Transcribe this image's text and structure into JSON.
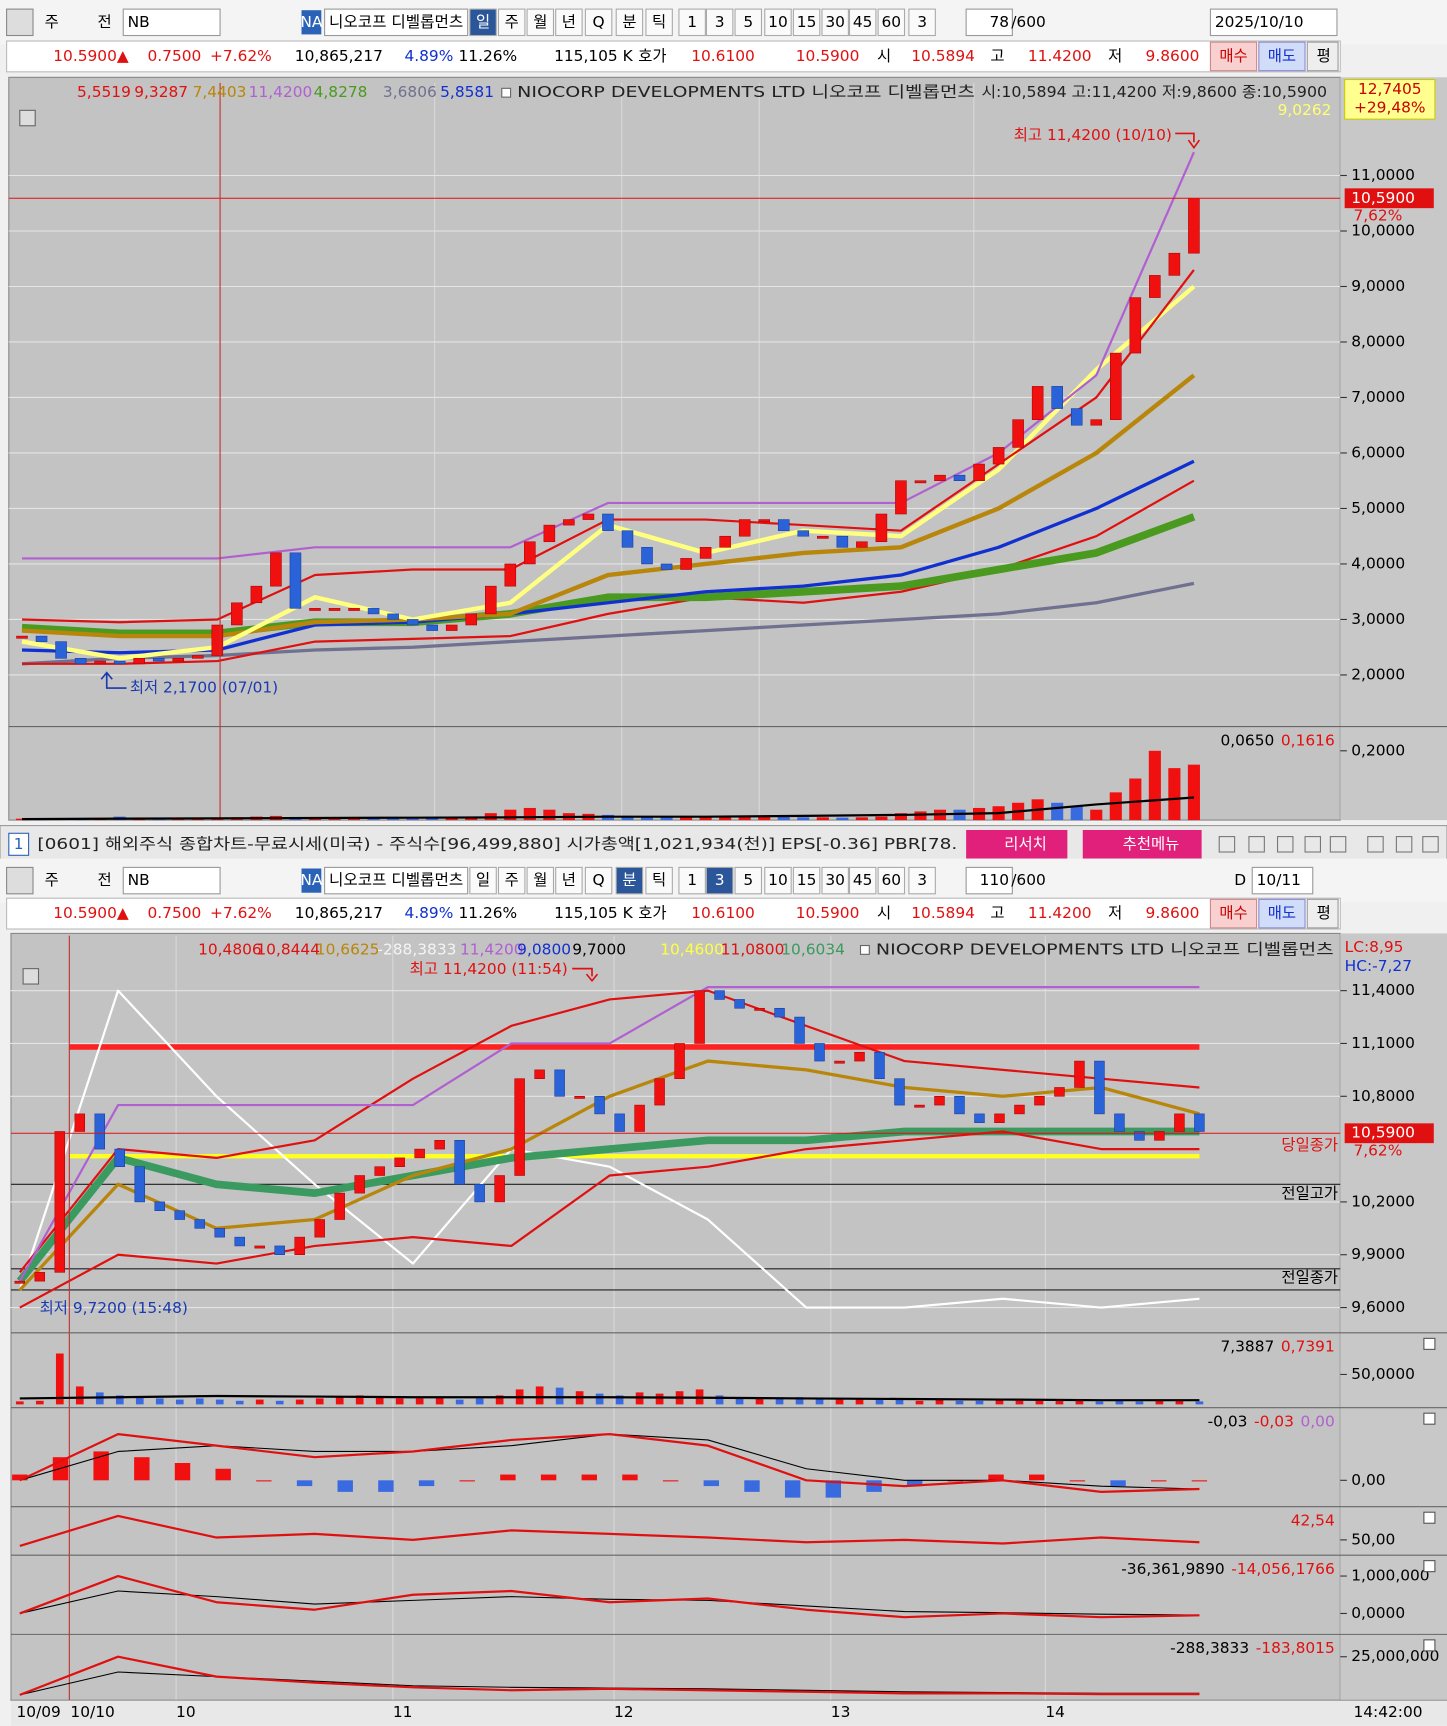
{
  "toolbar1": [
    "주",
    "전",
    "NB",
    "NA",
    "니오코프 디벨롭먼츠",
    "일",
    "주",
    "월",
    "년",
    "Q",
    "분",
    "틱",
    "1",
    "3",
    "5",
    "10",
    "15",
    "30",
    "45",
    "60",
    "3",
    "78",
    "/600",
    "2025/10/10"
  ],
  "quote1": [
    "10.5900▲",
    "0.7500",
    "+7.62%",
    "10,865,217",
    "4.89%",
    "11.26%",
    "115,105 K",
    "호가",
    "10.6100",
    "10.5900",
    "시",
    "10.5894",
    "고",
    "11.4200",
    "저",
    "9.8600",
    "매수",
    "매도",
    "평"
  ],
  "top_chart": {
    "legend": [
      {
        "text": "5,5519",
        "color": "#e01010"
      },
      {
        "text": "9,3287",
        "color": "#e01010"
      },
      {
        "text": "7,4403",
        "color": "#b8860b"
      },
      {
        "text": "11,4200",
        "color": "#b060d0"
      },
      {
        "text": "4,8278",
        "color": "#4a9a20"
      },
      {
        "text": "3,6806",
        "color": "#707090"
      },
      {
        "text": "5,8581",
        "color": "#1030d0"
      }
    ],
    "name": "NIOCORP DEVELOPMENTS LTD  니오코프 디벨롭먼츠",
    "ohlc": "시:10,5894 고:11,4200 저:9,8600 종:10,5900",
    "badge": [
      "12,7405",
      "+29,48%"
    ],
    "badge_sub": "9,0262",
    "high_note": "최고 11,4200 (10/10)",
    "low_note": "최저 2,1700 (07/01)",
    "price_label": "10,5900",
    "pct_label": "7,62%",
    "last_price": 10.59,
    "ylim": [
      1.07,
      12.67
    ],
    "yticks": [
      {
        "value": 2,
        "label": "2,0000"
      },
      {
        "value": 3,
        "label": "3,0000"
      },
      {
        "value": 4,
        "label": "4,0000"
      },
      {
        "value": 5,
        "label": "5,0000"
      },
      {
        "value": 6,
        "label": "6,0000"
      },
      {
        "value": 7,
        "label": "7,0000"
      },
      {
        "value": 8,
        "label": "8,0000"
      },
      {
        "value": 9,
        "label": "9,0000"
      },
      {
        "value": 10,
        "label": "10,0000"
      },
      {
        "value": 11,
        "label": "11,0000"
      }
    ],
    "close": [
      2.7,
      2.6,
      2.3,
      2.2,
      2.25,
      2.2,
      2.3,
      2.25,
      2.3,
      2.35,
      2.9,
      3.3,
      3.6,
      4.2,
      3.2,
      3.2,
      3.2,
      3.2,
      3.1,
      3.0,
      2.9,
      2.8,
      2.9,
      3.1,
      3.6,
      4.0,
      4.4,
      4.7,
      4.8,
      4.9,
      4.6,
      4.3,
      4.0,
      3.9,
      4.1,
      4.3,
      4.5,
      4.8,
      4.8,
      4.6,
      4.5,
      4.5,
      4.3,
      4.4,
      4.9,
      5.5,
      5.5,
      5.6,
      5.5,
      5.8,
      6.1,
      6.6,
      7.2,
      6.8,
      6.5,
      6.6,
      7.8,
      8.8,
      9.2,
      9.6,
      10.59
    ],
    "lines": [
      {
        "color": "#707090",
        "width": 3,
        "values": [
          2.2,
          2.3,
          2.35,
          2.45,
          2.5,
          2.6,
          2.7,
          2.8,
          2.9,
          3.0,
          3.1,
          3.3,
          3.65
        ]
      },
      {
        "color": "#e01010",
        "width": 2,
        "values": [
          2.2,
          2.2,
          2.25,
          2.6,
          2.65,
          2.7,
          3.1,
          3.4,
          3.3,
          3.5,
          3.9,
          4.5,
          5.5
        ]
      },
      {
        "color": "#4a9a20",
        "width": 7,
        "values": [
          2.85,
          2.75,
          2.75,
          2.95,
          2.95,
          3.1,
          3.4,
          3.4,
          3.5,
          3.6,
          3.9,
          4.2,
          4.85
        ]
      },
      {
        "color": "#1030d0",
        "width": 3,
        "values": [
          2.45,
          2.4,
          2.45,
          2.9,
          2.95,
          3.1,
          3.3,
          3.5,
          3.6,
          3.8,
          4.3,
          5.0,
          5.85
        ]
      },
      {
        "color": "#b8860b",
        "width": 4,
        "values": [
          2.8,
          2.7,
          2.7,
          2.95,
          3.0,
          3.1,
          3.8,
          4.0,
          4.2,
          4.3,
          5.0,
          6.0,
          7.4
        ]
      },
      {
        "color": "#ffff80",
        "width": 4,
        "values": [
          2.6,
          2.3,
          2.5,
          3.4,
          3.0,
          3.3,
          4.7,
          4.2,
          4.6,
          4.5,
          5.7,
          7.5,
          9.0
        ]
      },
      {
        "color": "#e01010",
        "width": 2,
        "values": [
          3.0,
          2.95,
          3.0,
          3.8,
          3.9,
          3.9,
          4.8,
          4.8,
          4.7,
          4.6,
          5.8,
          7.0,
          9.3
        ]
      },
      {
        "color": "#b060d0",
        "width": 2,
        "values": [
          4.1,
          4.1,
          4.1,
          4.3,
          4.3,
          4.3,
          5.1,
          5.1,
          5.1,
          5.1,
          6.0,
          7.4,
          11.42
        ]
      }
    ],
    "volume": {
      "legend": [
        {
          "text": "0,0650",
          "color": "#000000"
        },
        {
          "text": "0,1616",
          "color": "#e01010"
        }
      ],
      "ylim": [
        0,
        0.27
      ],
      "yticks": [
        {
          "value": 0.2,
          "label": "0,2000"
        }
      ],
      "values": [
        0.004,
        0.003,
        0.004,
        0.003,
        0.004,
        0.01,
        0.003,
        0.003,
        0.004,
        0.004,
        0.006,
        0.008,
        0.01,
        0.012,
        0.008,
        0.006,
        0.005,
        0.005,
        0.004,
        0.004,
        0.004,
        0.005,
        0.006,
        0.008,
        0.02,
        0.03,
        0.035,
        0.03,
        0.02,
        0.018,
        0.015,
        0.012,
        0.01,
        0.01,
        0.012,
        0.01,
        0.01,
        0.012,
        0.01,
        0.01,
        0.008,
        0.008,
        0.007,
        0.008,
        0.01,
        0.02,
        0.025,
        0.03,
        0.03,
        0.035,
        0.04,
        0.05,
        0.06,
        0.05,
        0.04,
        0.03,
        0.08,
        0.12,
        0.2,
        0.15,
        0.16
      ],
      "line": [
        0.003,
        0.004,
        0.005,
        0.006,
        0.007,
        0.008,
        0.01,
        0.01,
        0.012,
        0.015,
        0.02,
        0.045,
        0.065
      ]
    }
  },
  "window": {
    "no": "1",
    "title": "[0601] 해외주식 종합차트-무료시세(미국) - 주식수[96,499,880] 시가총액[1,021,934(천)] EPS[-0.36] PBR[78.",
    "buttons": [
      "리서치",
      "추천메뉴"
    ]
  },
  "toolbar2": [
    "주",
    "전",
    "NB",
    "NA",
    "니오코프 디벨롭먼츠",
    "일",
    "주",
    "월",
    "년",
    "Q",
    "분",
    "틱",
    "1",
    "3",
    "5",
    "10",
    "15",
    "30",
    "45",
    "60",
    "3",
    "110",
    "/600",
    "D",
    "10/11"
  ],
  "quote2": [
    "10.5900▲",
    "0.7500",
    "+7.62%",
    "10,865,217",
    "4.89%",
    "11.26%",
    "115,105 K",
    "호가",
    "10.6100",
    "10.5900",
    "시",
    "10.5894",
    "고",
    "11.4200",
    "저",
    "9.8600",
    "매수",
    "매도",
    "평"
  ],
  "bottom_chart": {
    "legend": [
      {
        "text": "10,4806",
        "color": "#e01010"
      },
      {
        "text": "10,8444",
        "color": "#e01010"
      },
      {
        "text": "10,6625",
        "color": "#b8860b"
      },
      {
        "text": "-288,3833",
        "color": "#f4f4f4"
      },
      {
        "text": "11,4200",
        "color": "#b060d0"
      },
      {
        "text": "9,0800",
        "color": "#1030d0"
      },
      {
        "text": "9,7000",
        "color": "#000000"
      },
      {
        "text": "10,4600",
        "color": "#ffff40"
      },
      {
        "text": "11,0800",
        "color": "#e01010"
      },
      {
        "text": "10,6034",
        "color": "#3a9a60"
      }
    ],
    "name": "NIOCORP DEVELOPMENTS LTD  니오코프 디벨롭먼츠",
    "lc": "LC:8,95",
    "hc": "HC:-7,27",
    "high_note": "최고 11,4200 (11:54)",
    "low_note": "최저 9,7200 (15:48)",
    "price_label": "10,5900",
    "pct_label": "7,62%",
    "close_note": "당일종가",
    "prev_high_note": "전일고가",
    "prev_close_note": "전일종가",
    "last_price": 10.59,
    "ylim": [
      9.4625,
      11.7125
    ],
    "yticks": [
      {
        "value": 9.6,
        "label": "9,6000"
      },
      {
        "value": 9.9,
        "label": "9,9000"
      },
      {
        "value": 10.2,
        "label": "10,2000"
      },
      {
        "value": 10.8,
        "label": "10,8000"
      },
      {
        "value": 11.1,
        "label": "11,1000"
      },
      {
        "value": 11.4,
        "label": "11,4000"
      }
    ],
    "levels": [
      {
        "value": 11.08,
        "color": "#ff2020",
        "width": 5
      },
      {
        "value": 10.46,
        "color": "#ffff20",
        "width": 4
      },
      {
        "value": 10.3,
        "color": "#202020",
        "width": 1
      },
      {
        "value": 9.82,
        "color": "#202020",
        "width": 1
      },
      {
        "value": 9.7,
        "color": "#202020",
        "width": 1
      }
    ],
    "close": [
      9.75,
      9.8,
      10.6,
      10.7,
      10.5,
      10.4,
      10.2,
      10.15,
      10.1,
      10.05,
      10.0,
      9.95,
      9.95,
      9.9,
      10.0,
      10.1,
      10.25,
      10.35,
      10.4,
      10.45,
      10.5,
      10.55,
      10.3,
      10.2,
      10.35,
      10.9,
      10.95,
      10.8,
      10.8,
      10.7,
      10.6,
      10.75,
      10.9,
      11.1,
      11.4,
      11.35,
      11.3,
      11.3,
      11.25,
      11.1,
      11.0,
      11.0,
      11.05,
      10.9,
      10.75,
      10.75,
      10.8,
      10.7,
      10.65,
      10.7,
      10.75,
      10.8,
      10.85,
      11.0,
      10.7,
      10.6,
      10.55,
      10.6,
      10.7,
      10.6
    ],
    "lines": [
      {
        "color": "#ffffff",
        "width": 2,
        "values": [
          9.7,
          11.4,
          10.8,
          10.3,
          9.85,
          10.5,
          10.4,
          10.1,
          9.6,
          9.6,
          9.65,
          9.6,
          9.65
        ]
      },
      {
        "color": "#3a9a60",
        "width": 7,
        "values": [
          9.75,
          10.45,
          10.3,
          10.25,
          10.35,
          10.45,
          10.5,
          10.55,
          10.55,
          10.6,
          10.6,
          10.6,
          10.6
        ]
      },
      {
        "color": "#e01010",
        "width": 2,
        "values": [
          9.6,
          9.9,
          9.85,
          9.95,
          10.0,
          9.95,
          10.35,
          10.4,
          10.5,
          10.55,
          10.6,
          10.5,
          10.5
        ]
      },
      {
        "color": "#b8860b",
        "width": 3,
        "values": [
          9.7,
          10.3,
          10.05,
          10.1,
          10.35,
          10.5,
          10.8,
          11.0,
          10.95,
          10.85,
          10.8,
          10.85,
          10.7
        ]
      },
      {
        "color": "#e01010",
        "width": 2,
        "values": [
          9.8,
          10.5,
          10.45,
          10.55,
          10.9,
          11.2,
          11.35,
          11.4,
          11.2,
          11.0,
          10.95,
          10.9,
          10.85
        ]
      },
      {
        "color": "#b060d0",
        "width": 2,
        "values": [
          9.75,
          10.75,
          10.75,
          10.75,
          10.75,
          11.1,
          11.1,
          11.42,
          11.42,
          11.42,
          11.42,
          11.42,
          11.42
        ]
      }
    ],
    "panels": [
      {
        "kind": "bars",
        "legend": [
          {
            "text": "7,3887",
            "color": "#000000"
          },
          {
            "text": "0,7391",
            "color": "#e01010"
          }
        ],
        "ylim": [
          0,
          114
        ],
        "yticks": [
          {
            "value": 50,
            "label": "50,0000"
          }
        ],
        "values": [
          5,
          6,
          85,
          30,
          20,
          15,
          12,
          10,
          8,
          10,
          8,
          6,
          8,
          6,
          8,
          10,
          12,
          15,
          12,
          10,
          10,
          12,
          8,
          10,
          15,
          25,
          30,
          28,
          22,
          18,
          15,
          20,
          18,
          22,
          25,
          15,
          12,
          10,
          10,
          12,
          10,
          8,
          8,
          10,
          8,
          6,
          8,
          6,
          6,
          8,
          6,
          6,
          8,
          6,
          5,
          6,
          5,
          6,
          6,
          5
        ],
        "lines": [
          {
            "color": "#000000",
            "width": 2,
            "values": [
              10,
              12,
              14,
              13,
              12,
              12,
              12,
              11,
              10,
              9,
              8,
              7,
              7
            ]
          }
        ]
      },
      {
        "kind": "hist",
        "legend": [
          {
            "text": "-0,03",
            "color": "#000000"
          },
          {
            "text": "-0,03",
            "color": "#e01010"
          },
          {
            "text": "0,00",
            "color": "#b060d0"
          }
        ],
        "ylim": [
          -0.04,
          0.12
        ],
        "yticks": [
          {
            "value": 0,
            "label": "0,00"
          }
        ],
        "values": [
          0.01,
          0.04,
          0.05,
          0.04,
          0.03,
          0.02,
          0.0,
          -0.01,
          -0.02,
          -0.02,
          -0.01,
          0.0,
          0.01,
          0.01,
          0.01,
          0.01,
          0.0,
          -0.01,
          -0.02,
          -0.03,
          -0.03,
          -0.02,
          -0.01,
          0.0,
          0.01,
          0.01,
          0.0,
          -0.01,
          0.0,
          0.0
        ],
        "lines": [
          {
            "color": "#000000",
            "width": 1,
            "values": [
              0,
              0.05,
              0.06,
              0.05,
              0.05,
              0.06,
              0.08,
              0.07,
              0.02,
              0.0,
              0.0,
              -0.01,
              -0.015
            ]
          },
          {
            "color": "#e01010",
            "width": 2,
            "values": [
              0,
              0.08,
              0.06,
              0.04,
              0.05,
              0.07,
              0.08,
              0.06,
              0.0,
              -0.01,
              0.0,
              -0.02,
              -0.015
            ]
          }
        ]
      },
      {
        "kind": "line",
        "legend": [
          {
            "text": "42,54",
            "color": "#e01010"
          }
        ],
        "ylim": [
          40,
          75
        ],
        "yticks": [
          {
            "value": 50,
            "label": "50,00"
          }
        ],
        "lines": [
          {
            "color": "#e01010",
            "width": 2,
            "values": [
              45,
              70,
              52,
              55,
              50,
              58,
              55,
              52,
              48,
              50,
              47,
              52,
              48
            ]
          }
        ]
      },
      {
        "kind": "line",
        "legend": [
          {
            "text": "-36,361,9890",
            "color": "#000000"
          },
          {
            "text": "-14,056,1766",
            "color": "#e01010"
          }
        ],
        "ylim": [
          -470000,
          1470000
        ],
        "yticks": [
          {
            "value": 1000000,
            "label": "1,000,000"
          },
          {
            "value": 0,
            "label": "0,0000"
          }
        ],
        "lines": [
          {
            "color": "#000000",
            "width": 1,
            "values": [
              0,
              600000,
              450000,
              250000,
              350000,
              450000,
              380000,
              350000,
              200000,
              50000,
              20000,
              -20000,
              -40000
            ]
          },
          {
            "color": "#e01010",
            "width": 2,
            "values": [
              0,
              1000000,
              300000,
              100000,
              500000,
              600000,
              300000,
              400000,
              100000,
              -100000,
              0,
              -100000,
              -50000
            ]
          }
        ]
      },
      {
        "kind": "line",
        "legend": [
          {
            "text": "-288,3833",
            "color": "#000000"
          },
          {
            "text": "-183,8015",
            "color": "#e01010"
          }
        ],
        "ylim": [
          0,
          37500000
        ],
        "yticks": [
          {
            "value": 25000000,
            "label": "25,000,000"
          }
        ],
        "lines": [
          {
            "color": "#000000",
            "width": 1,
            "values": [
              0,
              15000000,
              12000000,
              9000000,
              6000000,
              5000000,
              4500000,
              4000000,
              3000000,
              2000000,
              1500000,
              1000000,
              1000000
            ]
          },
          {
            "color": "#e01010",
            "width": 2,
            "values": [
              0,
              25000000,
              12000000,
              8000000,
              5000000,
              3000000,
              4000000,
              3000000,
              2000000,
              1000000,
              1000000,
              500000,
              500000
            ]
          }
        ]
      }
    ],
    "x_labels": [
      "10/09",
      "10/10",
      "10",
      "11",
      "12",
      "13",
      "14",
      "14:42:00"
    ]
  }
}
